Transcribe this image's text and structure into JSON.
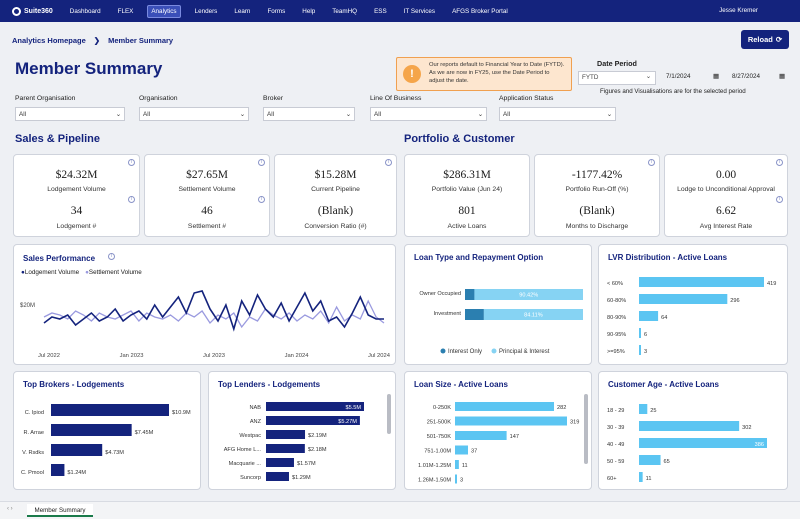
{
  "nav": {
    "logo": "Suite360",
    "items": [
      "Dashboard",
      "FLEX",
      "Analytics",
      "Lenders",
      "Learn",
      "Forms",
      "Help",
      "TeamHQ",
      "ESS",
      "IT Services",
      "AFGS Broker Portal"
    ],
    "active": "Analytics",
    "user": "Jesse Kremer"
  },
  "breadcrumb": {
    "home": "Analytics Homepage",
    "sep": "❯",
    "current": "Member Summary"
  },
  "reload_label": "Reload",
  "title": "Member Summary",
  "info": {
    "icon": "!",
    "text": "Our reports default to Financial Year to Date (FYTD). As we are now in FY25, use the Date Period to adjust the date."
  },
  "date_period": {
    "label": "Date Period",
    "preset": "FYTD",
    "from": "7/1/2024",
    "to": "8/27/2024",
    "note": "Figures and Visualisations are for the selected period"
  },
  "filters": [
    {
      "label": "Parent Organisation",
      "value": "All"
    },
    {
      "label": "Organisation",
      "value": "All"
    },
    {
      "label": "Broker",
      "value": "All"
    },
    {
      "label": "Line Of Business",
      "value": "All"
    },
    {
      "label": "Application Status",
      "value": "All"
    }
  ],
  "sections": {
    "sales": "Sales & Pipeline",
    "portfolio": "Portfolio & Customer"
  },
  "kpis": [
    {
      "v1": "$24.32M",
      "l1": "Lodgement Volume",
      "v2": "34",
      "l2": "Lodgement #"
    },
    {
      "v1": "$27.65M",
      "l1": "Settlement Volume",
      "v2": "46",
      "l2": "Settlement #"
    },
    {
      "v1": "$15.28M",
      "l1": "Current Pipeline",
      "v2": "(Blank)",
      "l2": "Conversion Ratio (#)"
    },
    {
      "v1": "$286.31M",
      "l1": "Portfolio Value (Jun 24)",
      "v2": "801",
      "l2": "Active Loans"
    },
    {
      "v1": "-1177.42%",
      "l1": "Portfolio Run-Off (%)",
      "v2": "(Blank)",
      "l2": "Months to Discharge"
    },
    {
      "v1": "0.00",
      "l1": "Lodge to Unconditional Approval",
      "v2": "6.62",
      "l2": "Avg Interest Rate"
    }
  ],
  "colors": {
    "navy": "#14237d",
    "lavender": "#9a9adf",
    "sky": "#5bc5f2",
    "sky_dark": "#2b7fb0",
    "teal_dark": "#1f6f8f",
    "orange": "#f5a54a"
  },
  "sales_perf": {
    "title": "Sales Performance",
    "legend": [
      "Lodgement Volume",
      "Settlement Volume"
    ],
    "y_tick": "$20M",
    "x_ticks": [
      "Jul 2022",
      "Jan 2023",
      "Jul 2023",
      "Jan 2024",
      "Jul 2024"
    ],
    "chart_data": {
      "type": "line",
      "ylabel": "",
      "series": [
        {
          "name": "Lodgement Volume",
          "values": [
            11,
            14,
            13,
            15,
            10,
            13,
            16,
            12,
            14,
            18,
            12,
            15,
            17,
            13,
            20,
            14,
            19,
            24,
            16,
            26,
            27,
            18,
            12,
            20,
            8,
            22,
            15,
            25,
            18,
            14,
            21,
            12,
            19,
            26,
            17,
            22,
            12,
            14,
            9,
            16,
            24,
            15,
            13,
            13
          ]
        },
        {
          "name": "Settlement Volume",
          "values": [
            14,
            16,
            15,
            13,
            17,
            15,
            12,
            16,
            14,
            13,
            15,
            17,
            12,
            16,
            14,
            13,
            15,
            12,
            16,
            14,
            17,
            11,
            15,
            13,
            16,
            9,
            14,
            12,
            18,
            15,
            13,
            16,
            12,
            15,
            13,
            17,
            11,
            19,
            12,
            15,
            13,
            22,
            14,
            11
          ]
        }
      ]
    }
  },
  "loan_type": {
    "title": "Loan Type and Repayment Option",
    "rows": [
      {
        "label": "Owner Occupied",
        "pct": "90.42%",
        "interest_only": 0.08
      },
      {
        "label": "Investment",
        "pct": "84.11%",
        "interest_only": 0.16
      }
    ],
    "legend": [
      "Interest Only",
      "Principal & Interest"
    ]
  },
  "lvr": {
    "title": "LVR Distribution - Active Loans",
    "rows": [
      {
        "label": "< 60%",
        "value": 419
      },
      {
        "label": "60-80%",
        "value": 296
      },
      {
        "label": "80-90%",
        "value": 64
      },
      {
        "label": "90-95%",
        "value": 6
      },
      {
        "label": ">=95%",
        "value": 3
      }
    ]
  },
  "brokers": {
    "title": "Top Brokers - Lodgements",
    "rows": [
      {
        "label": "C. Ipiod",
        "value": 10.9,
        "text": "$10.9M"
      },
      {
        "label": "R. Arrae",
        "value": 7.45,
        "text": "$7.45M"
      },
      {
        "label": "V. Rsdks",
        "value": 4.73,
        "text": "$4.73M"
      },
      {
        "label": "C. Pmool",
        "value": 1.24,
        "text": "$1.24M"
      }
    ]
  },
  "lenders": {
    "title": "Top Lenders - Lodgements",
    "rows": [
      {
        "label": "NAB",
        "value": 5.5,
        "text": "$5.5M"
      },
      {
        "label": "ANZ",
        "value": 5.27,
        "text": "$5.27M"
      },
      {
        "label": "Westpac",
        "value": 2.19,
        "text": "$2.19M"
      },
      {
        "label": "AFG Home L...",
        "value": 2.18,
        "text": "$2.18M"
      },
      {
        "label": "Macquarie ...",
        "value": 1.57,
        "text": "$1.57M"
      },
      {
        "label": "Suncorp",
        "value": 1.29,
        "text": "$1.29M"
      }
    ]
  },
  "loan_size": {
    "title": "Loan Size - Active Loans",
    "rows": [
      {
        "label": "0-250K",
        "value": 282
      },
      {
        "label": "251-500K",
        "value": 319
      },
      {
        "label": "501-750K",
        "value": 147
      },
      {
        "label": "751-1.00M",
        "value": 37
      },
      {
        "label": "1.01M-1.25M",
        "value": 11
      },
      {
        "label": "1.26M-1.50M",
        "value": 3
      }
    ]
  },
  "age": {
    "title": "Customer Age - Active Loans",
    "rows": [
      {
        "label": "18 - 29",
        "value": 25
      },
      {
        "label": "30 - 39",
        "value": 302
      },
      {
        "label": "40 - 49",
        "value": 386
      },
      {
        "label": "50 - 59",
        "value": 65
      },
      {
        "label": "60+",
        "value": 11
      }
    ]
  },
  "footer": {
    "tab": "Member Summary",
    "arrows": "‹ ›"
  }
}
